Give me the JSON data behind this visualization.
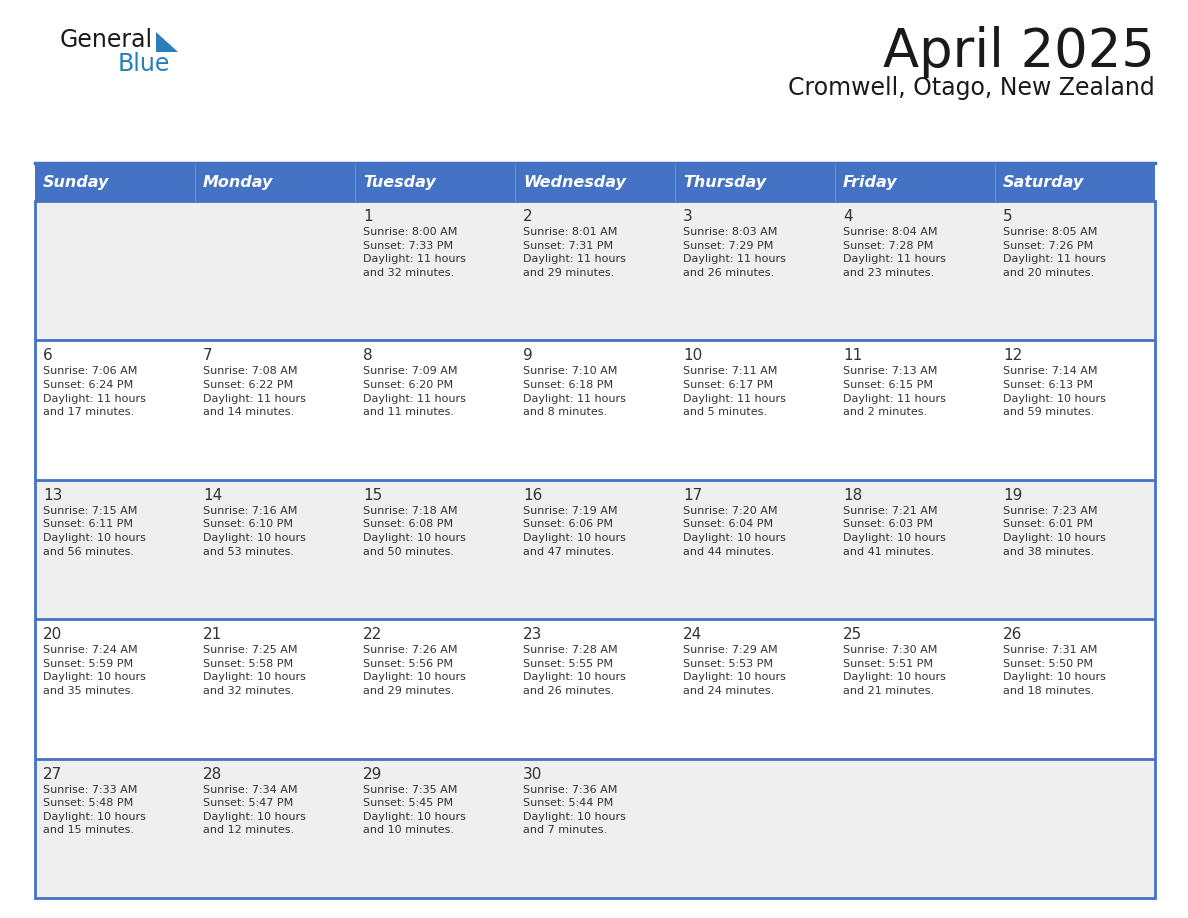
{
  "title": "April 2025",
  "subtitle": "Cromwell, Otago, New Zealand",
  "header_bg": "#4472C4",
  "header_text_color": "#FFFFFF",
  "cell_bg_light": "#EFEFEF",
  "cell_bg_white": "#FFFFFF",
  "cell_text_color": "#333333",
  "day_num_color": "#333333",
  "grid_line_color": "#4472C4",
  "background_color": "#FFFFFF",
  "days_of_week": [
    "Sunday",
    "Monday",
    "Tuesday",
    "Wednesday",
    "Thursday",
    "Friday",
    "Saturday"
  ],
  "logo_general_color": "#1a1a1a",
  "logo_blue_color": "#2980B9",
  "title_color": "#1a1a1a",
  "subtitle_color": "#1a1a1a",
  "calendar": [
    [
      {
        "day": "",
        "info": ""
      },
      {
        "day": "",
        "info": ""
      },
      {
        "day": "1",
        "info": "Sunrise: 8:00 AM\nSunset: 7:33 PM\nDaylight: 11 hours\nand 32 minutes."
      },
      {
        "day": "2",
        "info": "Sunrise: 8:01 AM\nSunset: 7:31 PM\nDaylight: 11 hours\nand 29 minutes."
      },
      {
        "day": "3",
        "info": "Sunrise: 8:03 AM\nSunset: 7:29 PM\nDaylight: 11 hours\nand 26 minutes."
      },
      {
        "day": "4",
        "info": "Sunrise: 8:04 AM\nSunset: 7:28 PM\nDaylight: 11 hours\nand 23 minutes."
      },
      {
        "day": "5",
        "info": "Sunrise: 8:05 AM\nSunset: 7:26 PM\nDaylight: 11 hours\nand 20 minutes."
      }
    ],
    [
      {
        "day": "6",
        "info": "Sunrise: 7:06 AM\nSunset: 6:24 PM\nDaylight: 11 hours\nand 17 minutes."
      },
      {
        "day": "7",
        "info": "Sunrise: 7:08 AM\nSunset: 6:22 PM\nDaylight: 11 hours\nand 14 minutes."
      },
      {
        "day": "8",
        "info": "Sunrise: 7:09 AM\nSunset: 6:20 PM\nDaylight: 11 hours\nand 11 minutes."
      },
      {
        "day": "9",
        "info": "Sunrise: 7:10 AM\nSunset: 6:18 PM\nDaylight: 11 hours\nand 8 minutes."
      },
      {
        "day": "10",
        "info": "Sunrise: 7:11 AM\nSunset: 6:17 PM\nDaylight: 11 hours\nand 5 minutes."
      },
      {
        "day": "11",
        "info": "Sunrise: 7:13 AM\nSunset: 6:15 PM\nDaylight: 11 hours\nand 2 minutes."
      },
      {
        "day": "12",
        "info": "Sunrise: 7:14 AM\nSunset: 6:13 PM\nDaylight: 10 hours\nand 59 minutes."
      }
    ],
    [
      {
        "day": "13",
        "info": "Sunrise: 7:15 AM\nSunset: 6:11 PM\nDaylight: 10 hours\nand 56 minutes."
      },
      {
        "day": "14",
        "info": "Sunrise: 7:16 AM\nSunset: 6:10 PM\nDaylight: 10 hours\nand 53 minutes."
      },
      {
        "day": "15",
        "info": "Sunrise: 7:18 AM\nSunset: 6:08 PM\nDaylight: 10 hours\nand 50 minutes."
      },
      {
        "day": "16",
        "info": "Sunrise: 7:19 AM\nSunset: 6:06 PM\nDaylight: 10 hours\nand 47 minutes."
      },
      {
        "day": "17",
        "info": "Sunrise: 7:20 AM\nSunset: 6:04 PM\nDaylight: 10 hours\nand 44 minutes."
      },
      {
        "day": "18",
        "info": "Sunrise: 7:21 AM\nSunset: 6:03 PM\nDaylight: 10 hours\nand 41 minutes."
      },
      {
        "day": "19",
        "info": "Sunrise: 7:23 AM\nSunset: 6:01 PM\nDaylight: 10 hours\nand 38 minutes."
      }
    ],
    [
      {
        "day": "20",
        "info": "Sunrise: 7:24 AM\nSunset: 5:59 PM\nDaylight: 10 hours\nand 35 minutes."
      },
      {
        "day": "21",
        "info": "Sunrise: 7:25 AM\nSunset: 5:58 PM\nDaylight: 10 hours\nand 32 minutes."
      },
      {
        "day": "22",
        "info": "Sunrise: 7:26 AM\nSunset: 5:56 PM\nDaylight: 10 hours\nand 29 minutes."
      },
      {
        "day": "23",
        "info": "Sunrise: 7:28 AM\nSunset: 5:55 PM\nDaylight: 10 hours\nand 26 minutes."
      },
      {
        "day": "24",
        "info": "Sunrise: 7:29 AM\nSunset: 5:53 PM\nDaylight: 10 hours\nand 24 minutes."
      },
      {
        "day": "25",
        "info": "Sunrise: 7:30 AM\nSunset: 5:51 PM\nDaylight: 10 hours\nand 21 minutes."
      },
      {
        "day": "26",
        "info": "Sunrise: 7:31 AM\nSunset: 5:50 PM\nDaylight: 10 hours\nand 18 minutes."
      }
    ],
    [
      {
        "day": "27",
        "info": "Sunrise: 7:33 AM\nSunset: 5:48 PM\nDaylight: 10 hours\nand 15 minutes."
      },
      {
        "day": "28",
        "info": "Sunrise: 7:34 AM\nSunset: 5:47 PM\nDaylight: 10 hours\nand 12 minutes."
      },
      {
        "day": "29",
        "info": "Sunrise: 7:35 AM\nSunset: 5:45 PM\nDaylight: 10 hours\nand 10 minutes."
      },
      {
        "day": "30",
        "info": "Sunrise: 7:36 AM\nSunset: 5:44 PM\nDaylight: 10 hours\nand 7 minutes."
      },
      {
        "day": "",
        "info": ""
      },
      {
        "day": "",
        "info": ""
      },
      {
        "day": "",
        "info": ""
      }
    ]
  ]
}
